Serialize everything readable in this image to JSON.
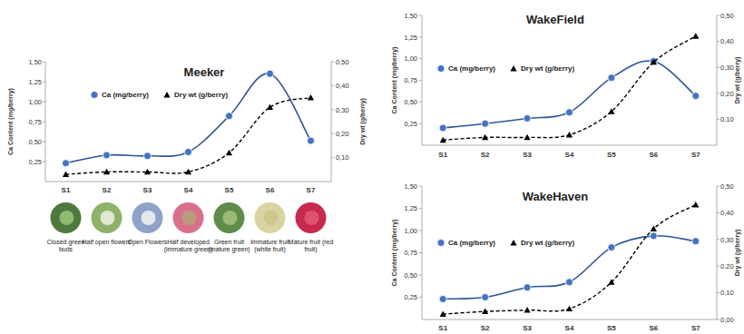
{
  "chart_data": [
    {
      "type": "line",
      "title": "Meeker",
      "categories": [
        "S1",
        "S2",
        "S3",
        "S4",
        "S5",
        "S6",
        "S7"
      ],
      "ylabel": "Ca Content (mg/berry)",
      "y2label": "Dry wt (g/berry)",
      "ylim": [
        0,
        1.5
      ],
      "yticks": [
        {
          "value": 0.25,
          "label": "0,25"
        },
        {
          "value": 0.5,
          "label": "0,50"
        },
        {
          "value": 0.75,
          "label": "0,75"
        },
        {
          "value": 1.0,
          "label": "1,00"
        },
        {
          "value": 1.25,
          "label": "1,25"
        },
        {
          "value": 1.5,
          "label": "1,50"
        }
      ],
      "y2lim": [
        0,
        0.5
      ],
      "y2ticks": [
        {
          "value": 0.1,
          "label": "0,10"
        },
        {
          "value": 0.2,
          "label": "0,20"
        },
        {
          "value": 0.3,
          "label": "0,30"
        },
        {
          "value": 0.4,
          "label": "0,40"
        },
        {
          "value": 0.5,
          "label": "0,50"
        }
      ],
      "legend": "upper left",
      "series": [
        {
          "name": "Ca (mg/berry)",
          "color": "#4472c4",
          "marker": "circle",
          "line_style": "solid",
          "values": [
            0.23,
            0.33,
            0.32,
            0.37,
            0.82,
            1.35,
            0.51
          ]
        },
        {
          "name": "Dry wt (g/berry)",
          "color": "#000000",
          "marker": "triangle",
          "line_style": "dashed",
          "axis": "y2",
          "values": [
            0.03,
            0.04,
            0.04,
            0.04,
            0.12,
            0.31,
            0.35
          ]
        }
      ],
      "annotations": [
        "Closed green buds",
        "Half open flowers",
        "Open Flowers",
        "Half developed (immature green)",
        "Green fruit (mature green)",
        "Immature fruit (white fruit)",
        "Mature fruit (red fruit)"
      ]
    },
    {
      "type": "line",
      "title": "WakeField",
      "categories": [
        "S1",
        "S2",
        "S3",
        "S4",
        "S5",
        "S6",
        "S7"
      ],
      "ylabel": "Ca Content (mg/berry)",
      "y2label": "Dry wt (g/berry)",
      "ylim": [
        0,
        1.5
      ],
      "yticks": [
        {
          "value": 0.25,
          "label": "0,25"
        },
        {
          "value": 0.5,
          "label": "0,50"
        },
        {
          "value": 0.75,
          "label": "0,75"
        },
        {
          "value": 1.0,
          "label": "1,00"
        },
        {
          "value": 1.25,
          "label": "1,25"
        },
        {
          "value": 1.5,
          "label": "1,50"
        }
      ],
      "y2lim": [
        0,
        0.5
      ],
      "y2ticks": [
        {
          "value": 0.1,
          "label": "0,10"
        },
        {
          "value": 0.2,
          "label": "0,20"
        },
        {
          "value": 0.3,
          "label": "0,30"
        },
        {
          "value": 0.4,
          "label": "0,40"
        },
        {
          "value": 0.5,
          "label": "0,50"
        }
      ],
      "legend": "upper left",
      "series": [
        {
          "name": "Ca (mg/berry)",
          "color": "#4472c4",
          "marker": "circle",
          "line_style": "solid",
          "values": [
            0.2,
            0.25,
            0.31,
            0.38,
            0.78,
            0.97,
            0.57
          ]
        },
        {
          "name": "Dry wt (g/berry)",
          "color": "#000000",
          "marker": "triangle",
          "line_style": "dashed",
          "axis": "y2",
          "values": [
            0.02,
            0.03,
            0.03,
            0.04,
            0.13,
            0.32,
            0.42
          ]
        }
      ]
    },
    {
      "type": "line",
      "title": "WakeHaven",
      "categories": [
        "S1",
        "S2",
        "S3",
        "S4",
        "S5",
        "S6",
        "S7"
      ],
      "ylabel": "Ca Content (mg/berry)",
      "y2label": "Dry wt (g/berry)",
      "ylim": [
        0,
        1.5
      ],
      "yticks": [
        {
          "value": 0.25,
          "label": "0,25"
        },
        {
          "value": 0.5,
          "label": "0,50"
        },
        {
          "value": 0.75,
          "label": "0,75"
        },
        {
          "value": 1.0,
          "label": "1,00"
        },
        {
          "value": 1.25,
          "label": "1,25"
        },
        {
          "value": 1.5,
          "label": "1,50"
        }
      ],
      "y2lim": [
        0,
        0.5
      ],
      "y2ticks": [
        {
          "value": 0,
          "label": "0,00"
        },
        {
          "value": 0.1,
          "label": "0,10"
        },
        {
          "value": 0.2,
          "label": "0,20"
        },
        {
          "value": 0.3,
          "label": "0,30"
        },
        {
          "value": 0.4,
          "label": "0,40"
        },
        {
          "value": 0.5,
          "label": "0,50"
        }
      ],
      "legend": "upper left",
      "series": [
        {
          "name": "Ca (mg/berry)",
          "color": "#4472c4",
          "marker": "circle",
          "line_style": "solid",
          "values": [
            0.23,
            0.25,
            0.36,
            0.42,
            0.81,
            0.94,
            0.88
          ]
        },
        {
          "name": "Dry wt (g/berry)",
          "color": "#000000",
          "marker": "triangle",
          "line_style": "dashed",
          "axis": "y2",
          "values": [
            0.02,
            0.03,
            0.035,
            0.04,
            0.14,
            0.34,
            0.43
          ]
        }
      ]
    }
  ]
}
